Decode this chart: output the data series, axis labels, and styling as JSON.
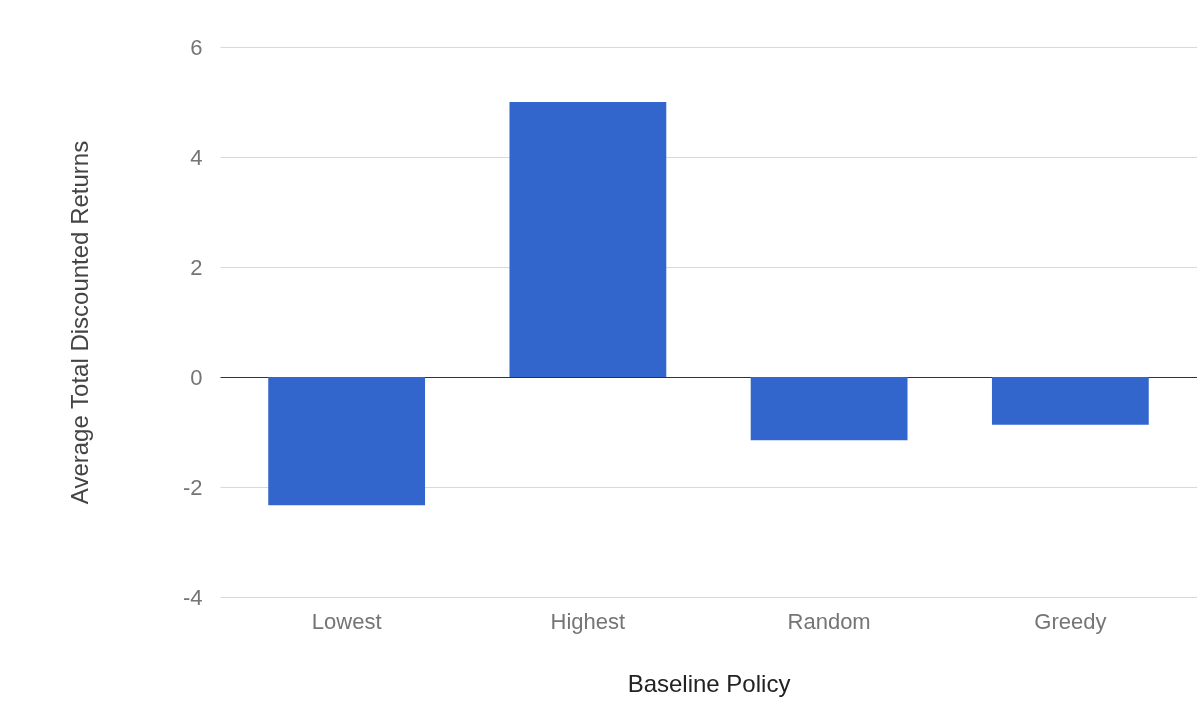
{
  "chart_data": {
    "type": "bar",
    "xlabel": "Baseline Policy",
    "ylabel": "Average Total Discounted Returns",
    "categories": [
      "Lowest",
      "Highest",
      "Random",
      "Greedy"
    ],
    "values": [
      -2.33,
      5.0,
      -1.15,
      -0.87
    ],
    "color": "#3366cc",
    "ylim": [
      -4,
      6
    ],
    "yticks": [
      -4,
      -2,
      0,
      2,
      4,
      6
    ],
    "grid": "y"
  }
}
